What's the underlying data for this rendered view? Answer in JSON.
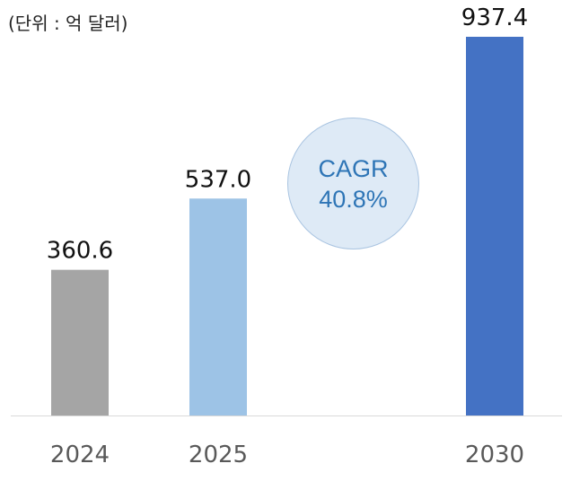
{
  "unit_label": "(단위 : 억 달러)",
  "annotation": {
    "line1": "CAGR",
    "line2": "40.8%"
  },
  "chart_data": {
    "type": "bar",
    "categories": [
      "2024",
      "2025",
      "2030"
    ],
    "values": [
      360.6,
      537.0,
      937.4
    ],
    "value_labels": [
      "360.6",
      "537.0",
      "937.4"
    ],
    "colors": [
      "#a5a5a5",
      "#9dc3e6",
      "#4472c4"
    ],
    "title": "",
    "xlabel": "",
    "ylabel": "",
    "ylim": [
      0,
      937.4
    ],
    "grid": false,
    "legend": "none"
  }
}
